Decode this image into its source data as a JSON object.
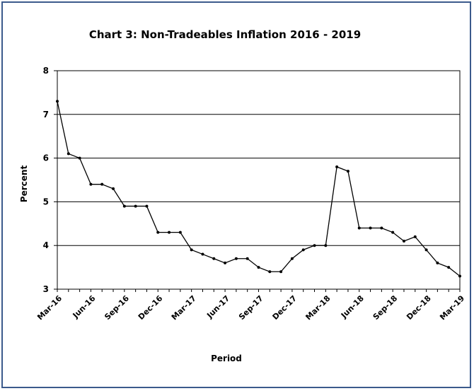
{
  "chart_data": {
    "type": "line",
    "title": "Chart 3: Non-Tradeables  Inflation  2016 - 2019",
    "xlabel": "Period",
    "ylabel": "Percent",
    "ylim": [
      3,
      8
    ],
    "yticks": [
      3,
      4,
      5,
      6,
      7,
      8
    ],
    "grid": true,
    "x_tick_labels": [
      "Mar-16",
      "Jun-16",
      "Sep-16",
      "Dec-16",
      "Mar-17",
      "Jun-17",
      "Sep-17",
      "Dec-17",
      "Mar-18",
      "Jun-18",
      "Sep-18",
      "Dec-18",
      "Mar-19"
    ],
    "x": [
      "Mar-16",
      "Apr-16",
      "May-16",
      "Jun-16",
      "Jul-16",
      "Aug-16",
      "Sep-16",
      "Oct-16",
      "Nov-16",
      "Dec-16",
      "Jan-17",
      "Feb-17",
      "Mar-17",
      "Apr-17",
      "May-17",
      "Jun-17",
      "Jul-17",
      "Aug-17",
      "Sep-17",
      "Oct-17",
      "Nov-17",
      "Dec-17",
      "Jan-18",
      "Feb-18",
      "Mar-18",
      "Apr-18",
      "May-18",
      "Jun-18",
      "Jul-18",
      "Aug-18",
      "Sep-18",
      "Oct-18",
      "Nov-18",
      "Dec-18",
      "Jan-19",
      "Feb-19",
      "Mar-19"
    ],
    "series": [
      {
        "color": "#000000",
        "values": [
          7.3,
          6.1,
          6.0,
          5.4,
          5.4,
          5.3,
          4.9,
          4.9,
          4.9,
          4.3,
          4.3,
          4.3,
          3.9,
          3.8,
          3.7,
          3.6,
          3.7,
          3.7,
          3.5,
          3.4,
          3.4,
          3.7,
          3.9,
          4.0,
          4.0,
          5.8,
          5.7,
          4.4,
          4.4,
          4.4,
          4.3,
          4.1,
          4.2,
          3.9,
          3.6,
          3.5,
          3.3
        ]
      }
    ]
  }
}
